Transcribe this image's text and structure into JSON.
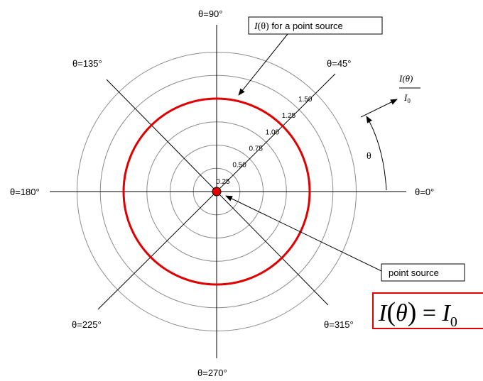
{
  "angle_labels": {
    "a0": "θ=0°",
    "a45": "θ=45°",
    "a90": "θ=90°",
    "a135": "θ=135°",
    "a180": "θ=180°",
    "a225": "θ=225°",
    "a270": "θ=270°",
    "a315": "θ=315°"
  },
  "ring_labels": [
    "0.25",
    "0.50",
    "0.75",
    "1.00",
    "1.25",
    "1.50"
  ],
  "ring_values": [
    0.25,
    0.5,
    0.75,
    1.0,
    1.25,
    1.5
  ],
  "intensity_value": 1.0,
  "callout_top": {
    "I": "I",
    "arg": "(θ)",
    "rest": " for a point source"
  },
  "callout_bottom": "point source",
  "axis_ratio": {
    "numerator": "I(θ)",
    "denominator_I": "I",
    "denominator_sub": "0"
  },
  "theta_symbol": "θ",
  "equation": {
    "I": "I",
    "open": "(",
    "theta": "θ",
    "close": ")",
    "eq": " = ",
    "I0": "I",
    "sub": "0"
  },
  "colors": {
    "intensity_curve": "#e00000",
    "rings": "#8c8c8c",
    "axes": "#000000",
    "source": "#e00000",
    "equation_border": "#e00000"
  }
}
